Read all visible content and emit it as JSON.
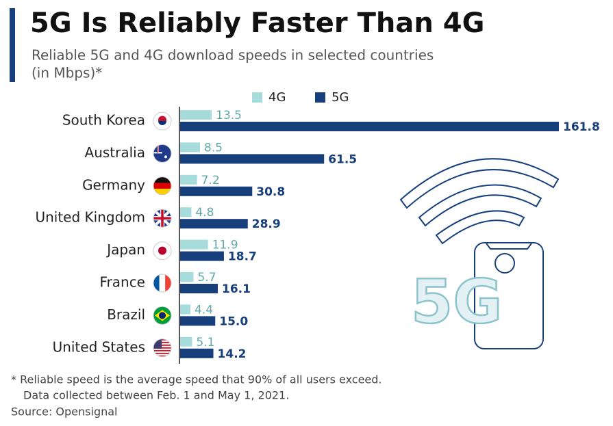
{
  "chart_data": {
    "type": "bar",
    "orientation": "horizontal",
    "title": "5G Is Reliably Faster Than 4G",
    "subtitle": [
      "Reliable 5G and 4G download speeds in selected countries",
      "(in Mbps)*"
    ],
    "categories": [
      "South Korea",
      "Australia",
      "Germany",
      "United Kingdom",
      "Japan",
      "France",
      "Brazil",
      "United States"
    ],
    "series": [
      {
        "name": "4G",
        "color": "#a6dcdb",
        "values": [
          13.5,
          8.5,
          7.2,
          4.8,
          11.9,
          5.7,
          4.4,
          5.1
        ]
      },
      {
        "name": "5G",
        "color": "#163f7c",
        "values": [
          161.8,
          61.5,
          30.8,
          28.9,
          18.7,
          16.1,
          15.0,
          14.2
        ],
        "value_labels": [
          "161.8",
          "61.5",
          "30.8",
          "28.9",
          "18.7",
          "16.1",
          "15.0",
          "14.2"
        ]
      }
    ],
    "annotation": "5G",
    "footnote": [
      "* Reliable speed is the average speed that 90% of all users exceed.",
      "Data collected between Feb. 1 and May 1, 2021."
    ],
    "source": "Source: Opensignal"
  }
}
